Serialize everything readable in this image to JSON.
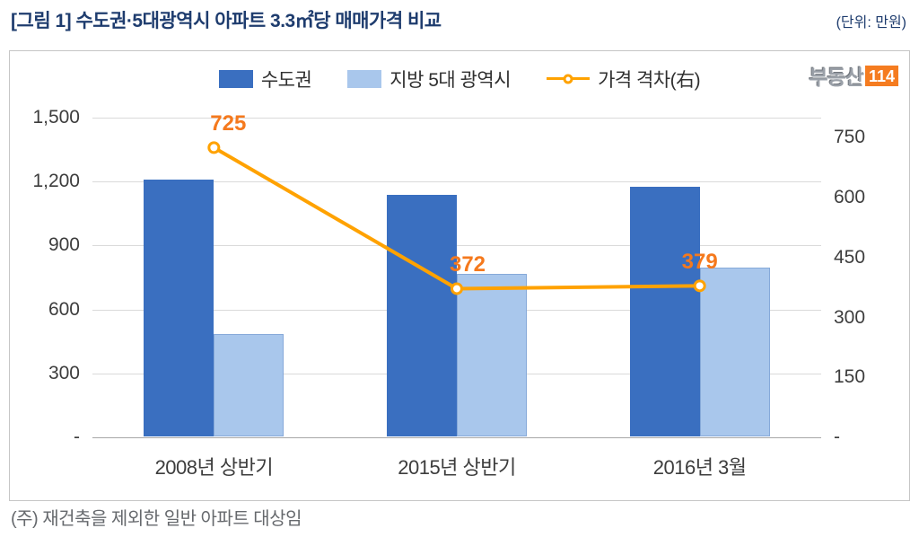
{
  "header": {
    "title": "[그림 1] 수도권·5대광역시 아파트 3.3㎡당 매매가격 비교",
    "unit": "(단위: 만원)"
  },
  "logo": {
    "text": "부동산",
    "badge": "114",
    "badge_color": "#f57c20"
  },
  "footnote": "(주) 재건축을 제외한 일반 아파트 대상임",
  "chart_data": {
    "type": "bar+line",
    "title": "수도권·5대광역시 아파트 3.3㎡당 매매가격 비교",
    "unit": "만원",
    "categories": [
      "2008년 상반기",
      "2015년 상반기",
      "2016년 3월"
    ],
    "series": [
      {
        "name": "수도권",
        "type": "bar",
        "axis": "left",
        "color": "#3a6fc0",
        "values": [
          1207,
          1134,
          1171
        ]
      },
      {
        "name": "지방 5대 광역시",
        "type": "bar",
        "axis": "left",
        "color": "#a9c7ec",
        "values": [
          482,
          762,
          792
        ]
      },
      {
        "name": "가격 격차(右)",
        "type": "line",
        "axis": "right",
        "color": "#ffa200",
        "label_color": "#f5791d",
        "values": [
          725,
          372,
          379
        ],
        "labels": [
          "725",
          "372",
          "379"
        ]
      }
    ],
    "left_axis": {
      "max": 1500,
      "ticks": [
        {
          "label": "1,500",
          "value": 1500
        },
        {
          "label": "1,200",
          "value": 1200
        },
        {
          "label": "900",
          "value": 900
        },
        {
          "label": "600",
          "value": 600
        },
        {
          "label": "300",
          "value": 300
        },
        {
          "label": "-",
          "value": 0
        }
      ]
    },
    "right_axis": {
      "max": 800,
      "ticks": [
        {
          "label": "750",
          "value": 750
        },
        {
          "label": "600",
          "value": 600
        },
        {
          "label": "450",
          "value": 450
        },
        {
          "label": "300",
          "value": 300
        },
        {
          "label": "150",
          "value": 150
        },
        {
          "label": "-",
          "value": 0
        }
      ]
    },
    "grid": true,
    "legend_position": "top"
  }
}
